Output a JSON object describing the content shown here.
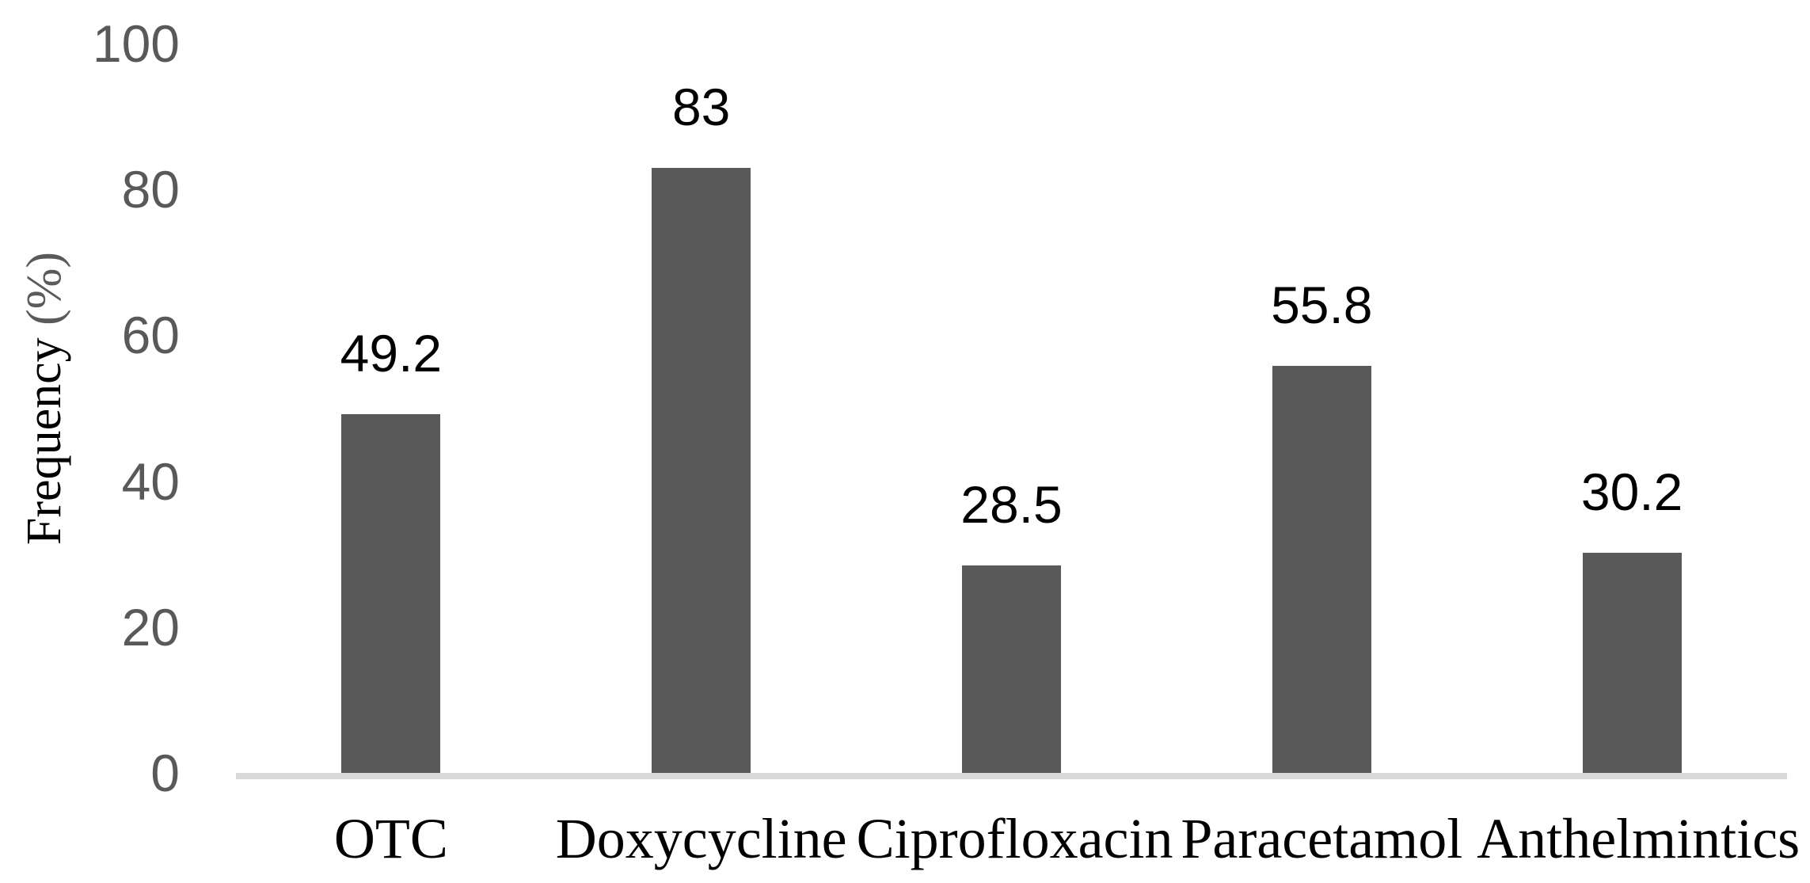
{
  "chart_data": {
    "type": "bar",
    "title": "",
    "categories": [
      "OTC",
      "Doxycycline",
      "Ciprofloxacin",
      "Paracetamol",
      "Anthelmintics"
    ],
    "values": [
      49.2,
      83,
      28.5,
      55.8,
      30.2
    ],
    "data_labels": [
      "49.2",
      "83",
      "28.5",
      "55.8",
      "30.2"
    ],
    "ylabel": "Frequency (%)",
    "ylabel_word": "Frequency ",
    "ylabel_unit": "(%)",
    "y_ticks": [
      "0",
      "20",
      "40",
      "60",
      "80",
      "100"
    ],
    "y_tick_values": [
      0,
      20,
      40,
      60,
      80,
      100
    ],
    "ylim": [
      0,
      100
    ],
    "grid": false,
    "legend": false,
    "colors": {
      "bar": "#595959",
      "tick_text": "#595959",
      "data_label_text": "#000000",
      "category_text": "#000000",
      "ylabel_word_color": "#000000",
      "ylabel_unit_color": "#5a5a5a",
      "axis_line": "#d9d9d9",
      "background": "#ffffff"
    }
  }
}
